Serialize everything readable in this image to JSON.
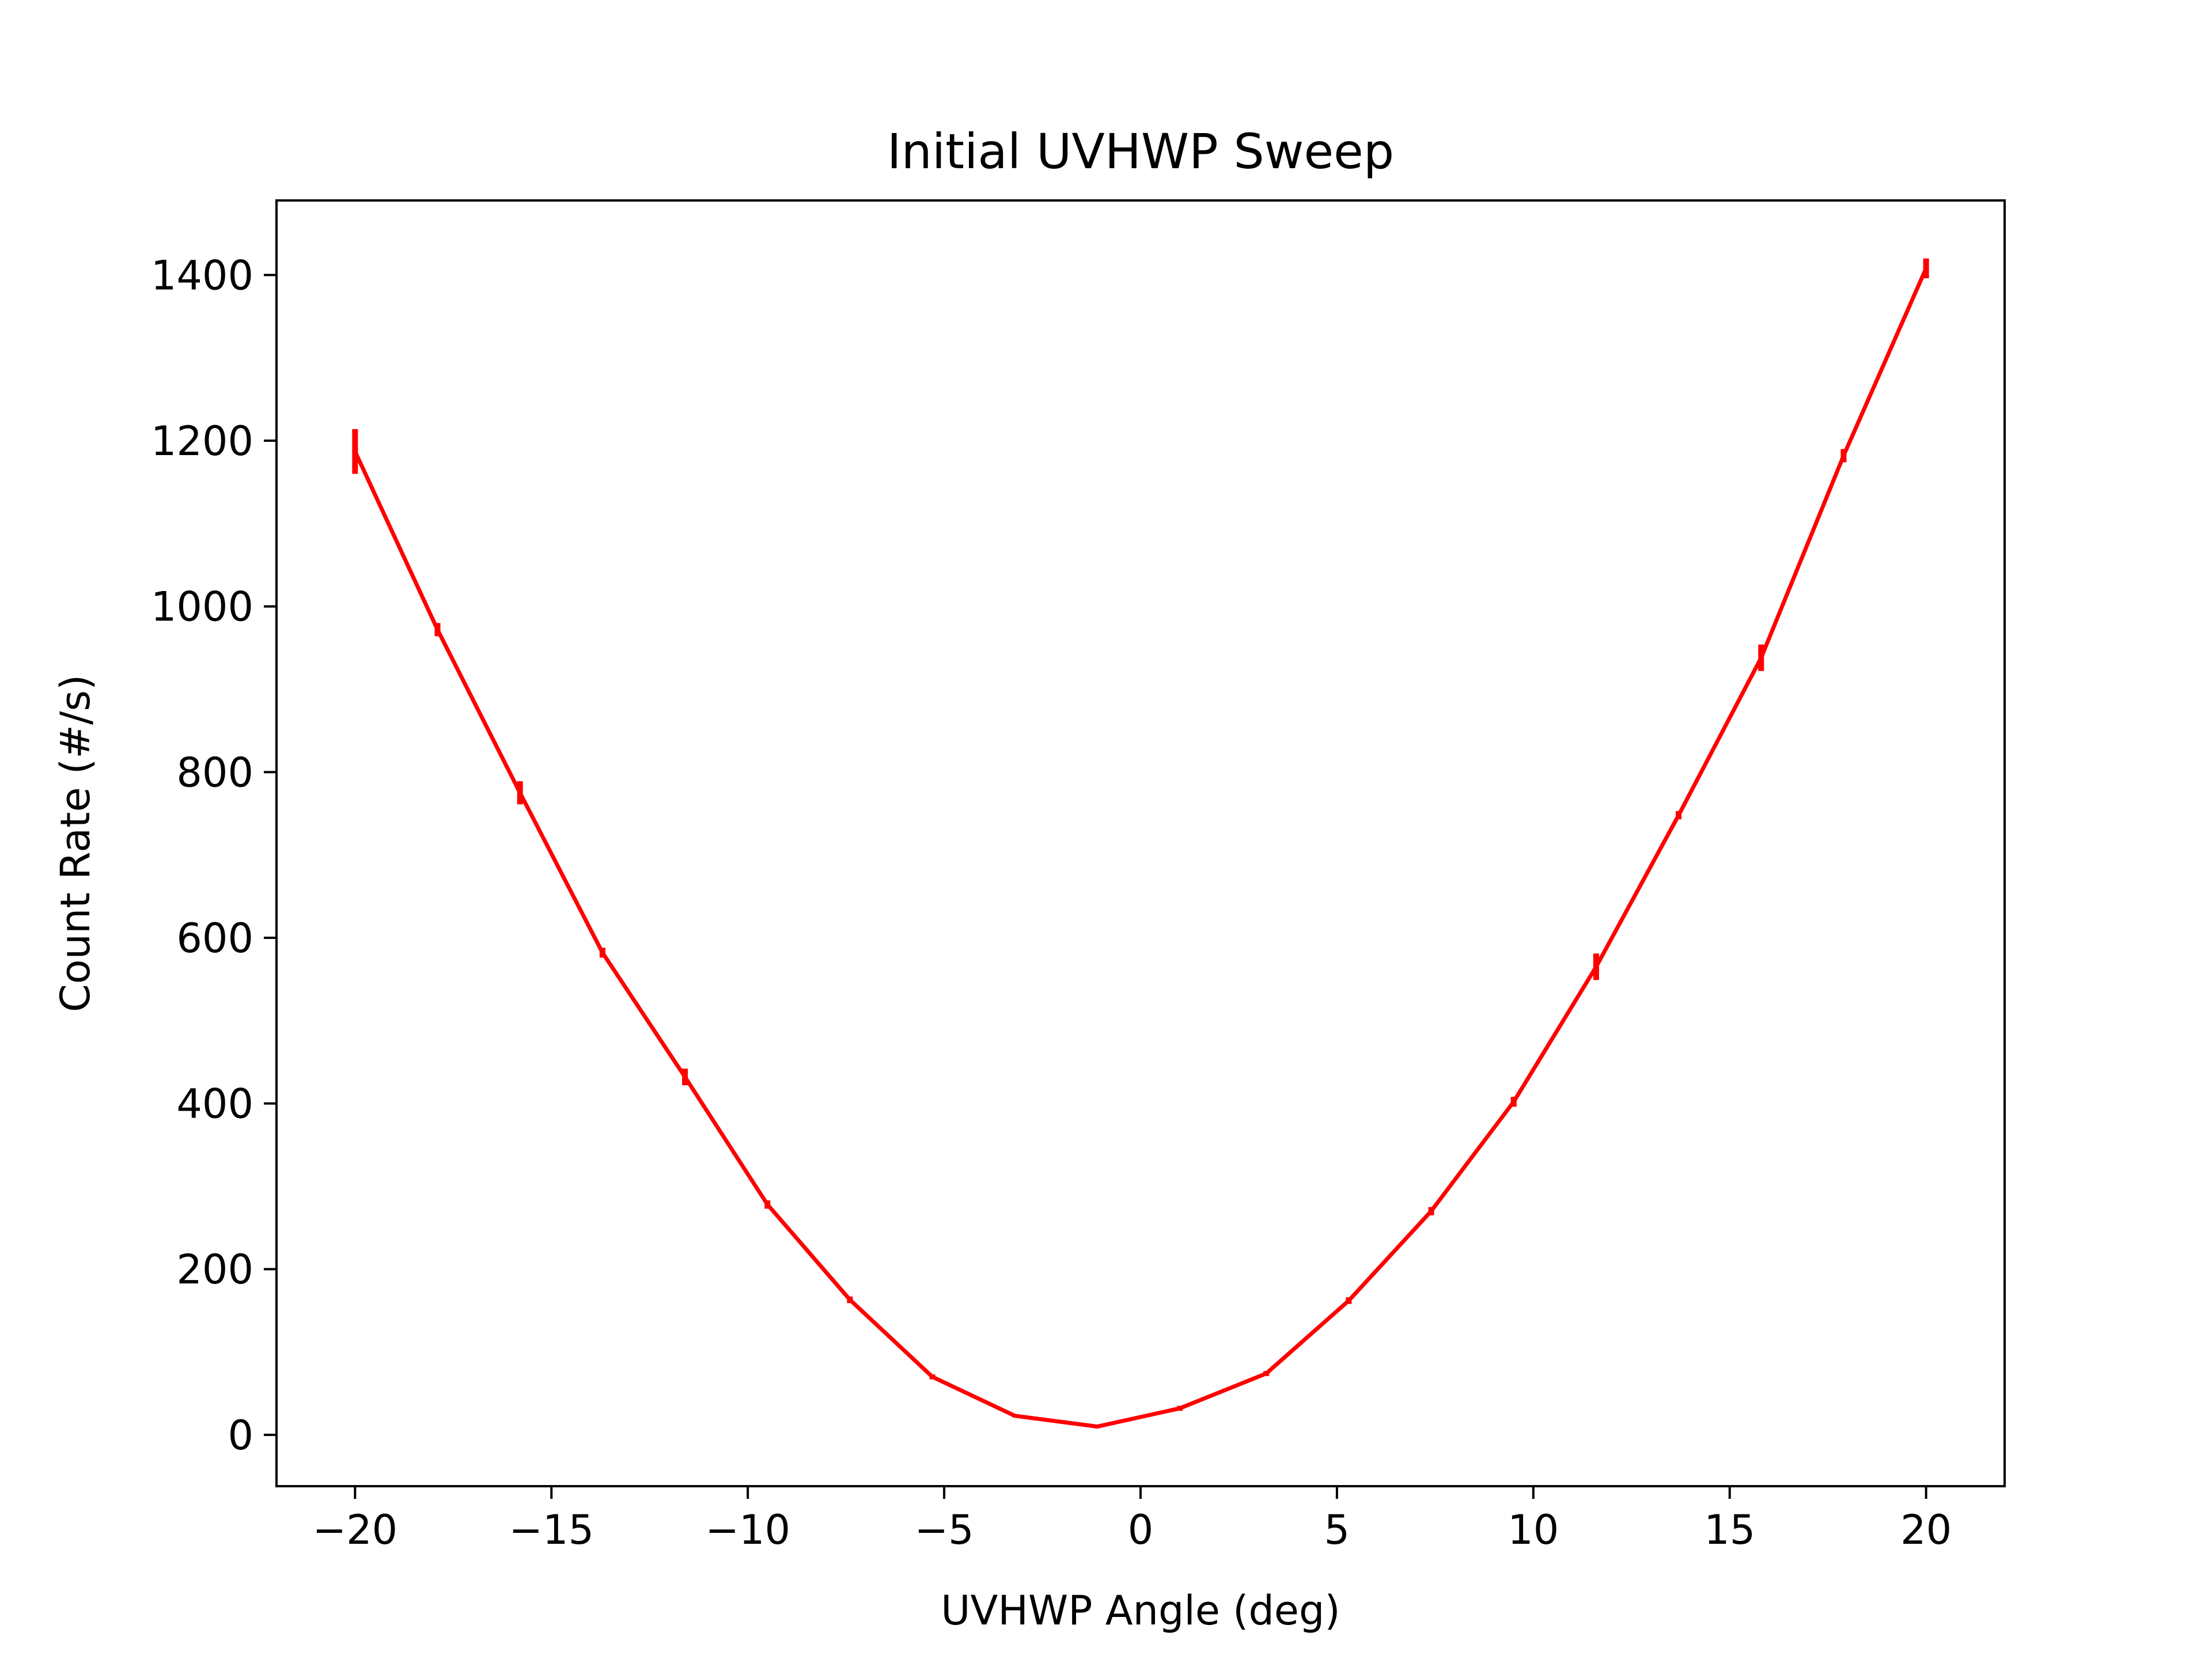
{
  "chart_data": {
    "type": "line",
    "title": "Initial UVHWP Sweep",
    "xlabel": "UVHWP Angle (deg)",
    "ylabel": "Count Rate (#/s)",
    "xlim": [
      -22,
      22
    ],
    "ylim": [
      -62,
      1490
    ],
    "xticks": [
      -20,
      -15,
      -10,
      -5,
      0,
      5,
      10,
      15,
      20
    ],
    "xtick_labels": [
      "−20",
      "−15",
      "−10",
      "−5",
      "0",
      "5",
      "10",
      "15",
      "20"
    ],
    "yticks": [
      0,
      200,
      400,
      600,
      800,
      1000,
      1200,
      1400
    ],
    "ytick_labels": [
      "0",
      "200",
      "400",
      "600",
      "800",
      "1000",
      "1200",
      "1400"
    ],
    "grid": false,
    "color": "#ff0000",
    "series": [
      {
        "x": [
          -20.0,
          -17.9,
          -15.8,
          -13.7,
          -11.6,
          -9.5,
          -7.4,
          -5.3,
          -3.2,
          -1.1,
          1.0,
          3.2,
          5.3,
          7.4,
          9.5,
          11.6,
          13.7,
          15.8,
          17.9,
          20.0
        ],
        "y": [
          1187,
          972,
          775,
          582,
          432,
          278,
          163,
          70,
          23,
          10,
          32,
          74,
          162,
          270,
          402,
          565,
          748,
          938,
          1182,
          1408
        ],
        "yerr": [
          27,
          8,
          14,
          6,
          10,
          5,
          4,
          3,
          2,
          2,
          3,
          3,
          4,
          5,
          6,
          16,
          5,
          16,
          8,
          12
        ]
      }
    ]
  }
}
